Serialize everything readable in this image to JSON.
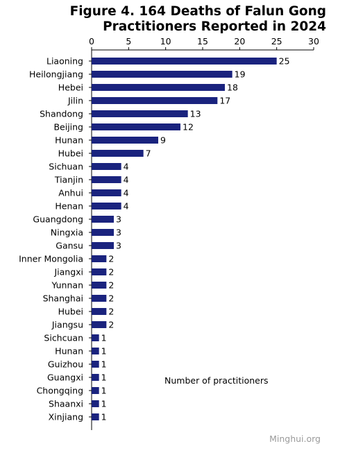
{
  "chart_data": {
    "type": "bar",
    "orientation": "horizontal",
    "title": "Figure 4. 164 Deaths of Falun Gong Practitioners Reported in 2024",
    "title_lines": [
      "Figure 4. 164 Deaths of Falun Gong",
      "Practitioners Reported in 2024"
    ],
    "xlabel": "Number of practitioners",
    "ylabel": "",
    "xlim": [
      0,
      30
    ],
    "x_ticks": [
      0,
      5,
      10,
      15,
      20,
      25,
      30
    ],
    "x_axis_position": "top",
    "grid": false,
    "legend": "none",
    "bar_color": "#1a237e",
    "categories": [
      "Liaoning",
      "Heilongjiang",
      "Hebei",
      "Jilin",
      "Shandong",
      "Beijing",
      "Hunan",
      "Hubei",
      "Sichuan",
      "Tianjin",
      "Anhui",
      "Henan",
      "Guangdong",
      "Ningxia",
      "Gansu",
      "Inner Mongolia",
      "Jiangxi",
      "Yunnan",
      "Shanghai",
      "Hubei",
      "Jiangsu",
      "Sichcuan",
      "Hunan",
      "Guizhou",
      "Guangxi",
      "Chongqing",
      "Shaanxi",
      "Xinjiang"
    ],
    "values": [
      25,
      19,
      18,
      17,
      13,
      12,
      9,
      7,
      4,
      4,
      4,
      4,
      3,
      3,
      3,
      2,
      2,
      2,
      2,
      2,
      2,
      1,
      1,
      1,
      1,
      1,
      1,
      1
    ]
  },
  "watermark": "Minghui.org"
}
